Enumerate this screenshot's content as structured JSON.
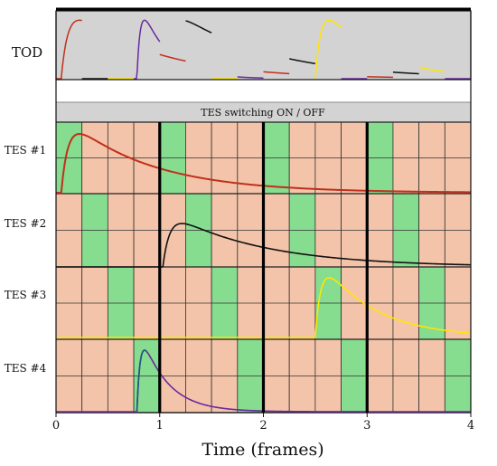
{
  "tod_label": "TOD",
  "switching_label": "TES switching  ON / OFF",
  "tes_labels": [
    "TES #1",
    "TES #2",
    "TES #3",
    "TES #4"
  ],
  "x_ticks": [
    "0",
    "1",
    "2",
    "3",
    "4"
  ],
  "xlabel": "Time (frames)",
  "colors": {
    "tod_bg": "#d3d3d3",
    "cell_off": "#f4c4aa",
    "cell_on": "#86dc8f",
    "tes1": "#c0301c",
    "tes2": "#111111",
    "tes3": "#ffe600",
    "tes4": "#6a2aa0",
    "tes4_rise": "#1f5a80"
  },
  "chart_data": {
    "type": "diagram",
    "x_range": [
      0,
      4
    ],
    "x_unit": "frames",
    "cells_per_frame": 4,
    "on_cells": {
      "TES #1": [
        0,
        4,
        8,
        12
      ],
      "TES #2": [
        1,
        5,
        9,
        13
      ],
      "TES #3": [
        2,
        6,
        10,
        14
      ],
      "TES #4": [
        3,
        7,
        11,
        15
      ]
    },
    "pulses": [
      {
        "tes": "TES #1",
        "onset": 0.05,
        "tau": 0.8
      },
      {
        "tes": "TES #2",
        "onset": 1.03,
        "tau": 0.9
      },
      {
        "tes": "TES #3",
        "onset": 2.5,
        "tau": 0.5
      },
      {
        "tes": "TES #4",
        "onset": 0.78,
        "tau": 0.25
      }
    ]
  }
}
